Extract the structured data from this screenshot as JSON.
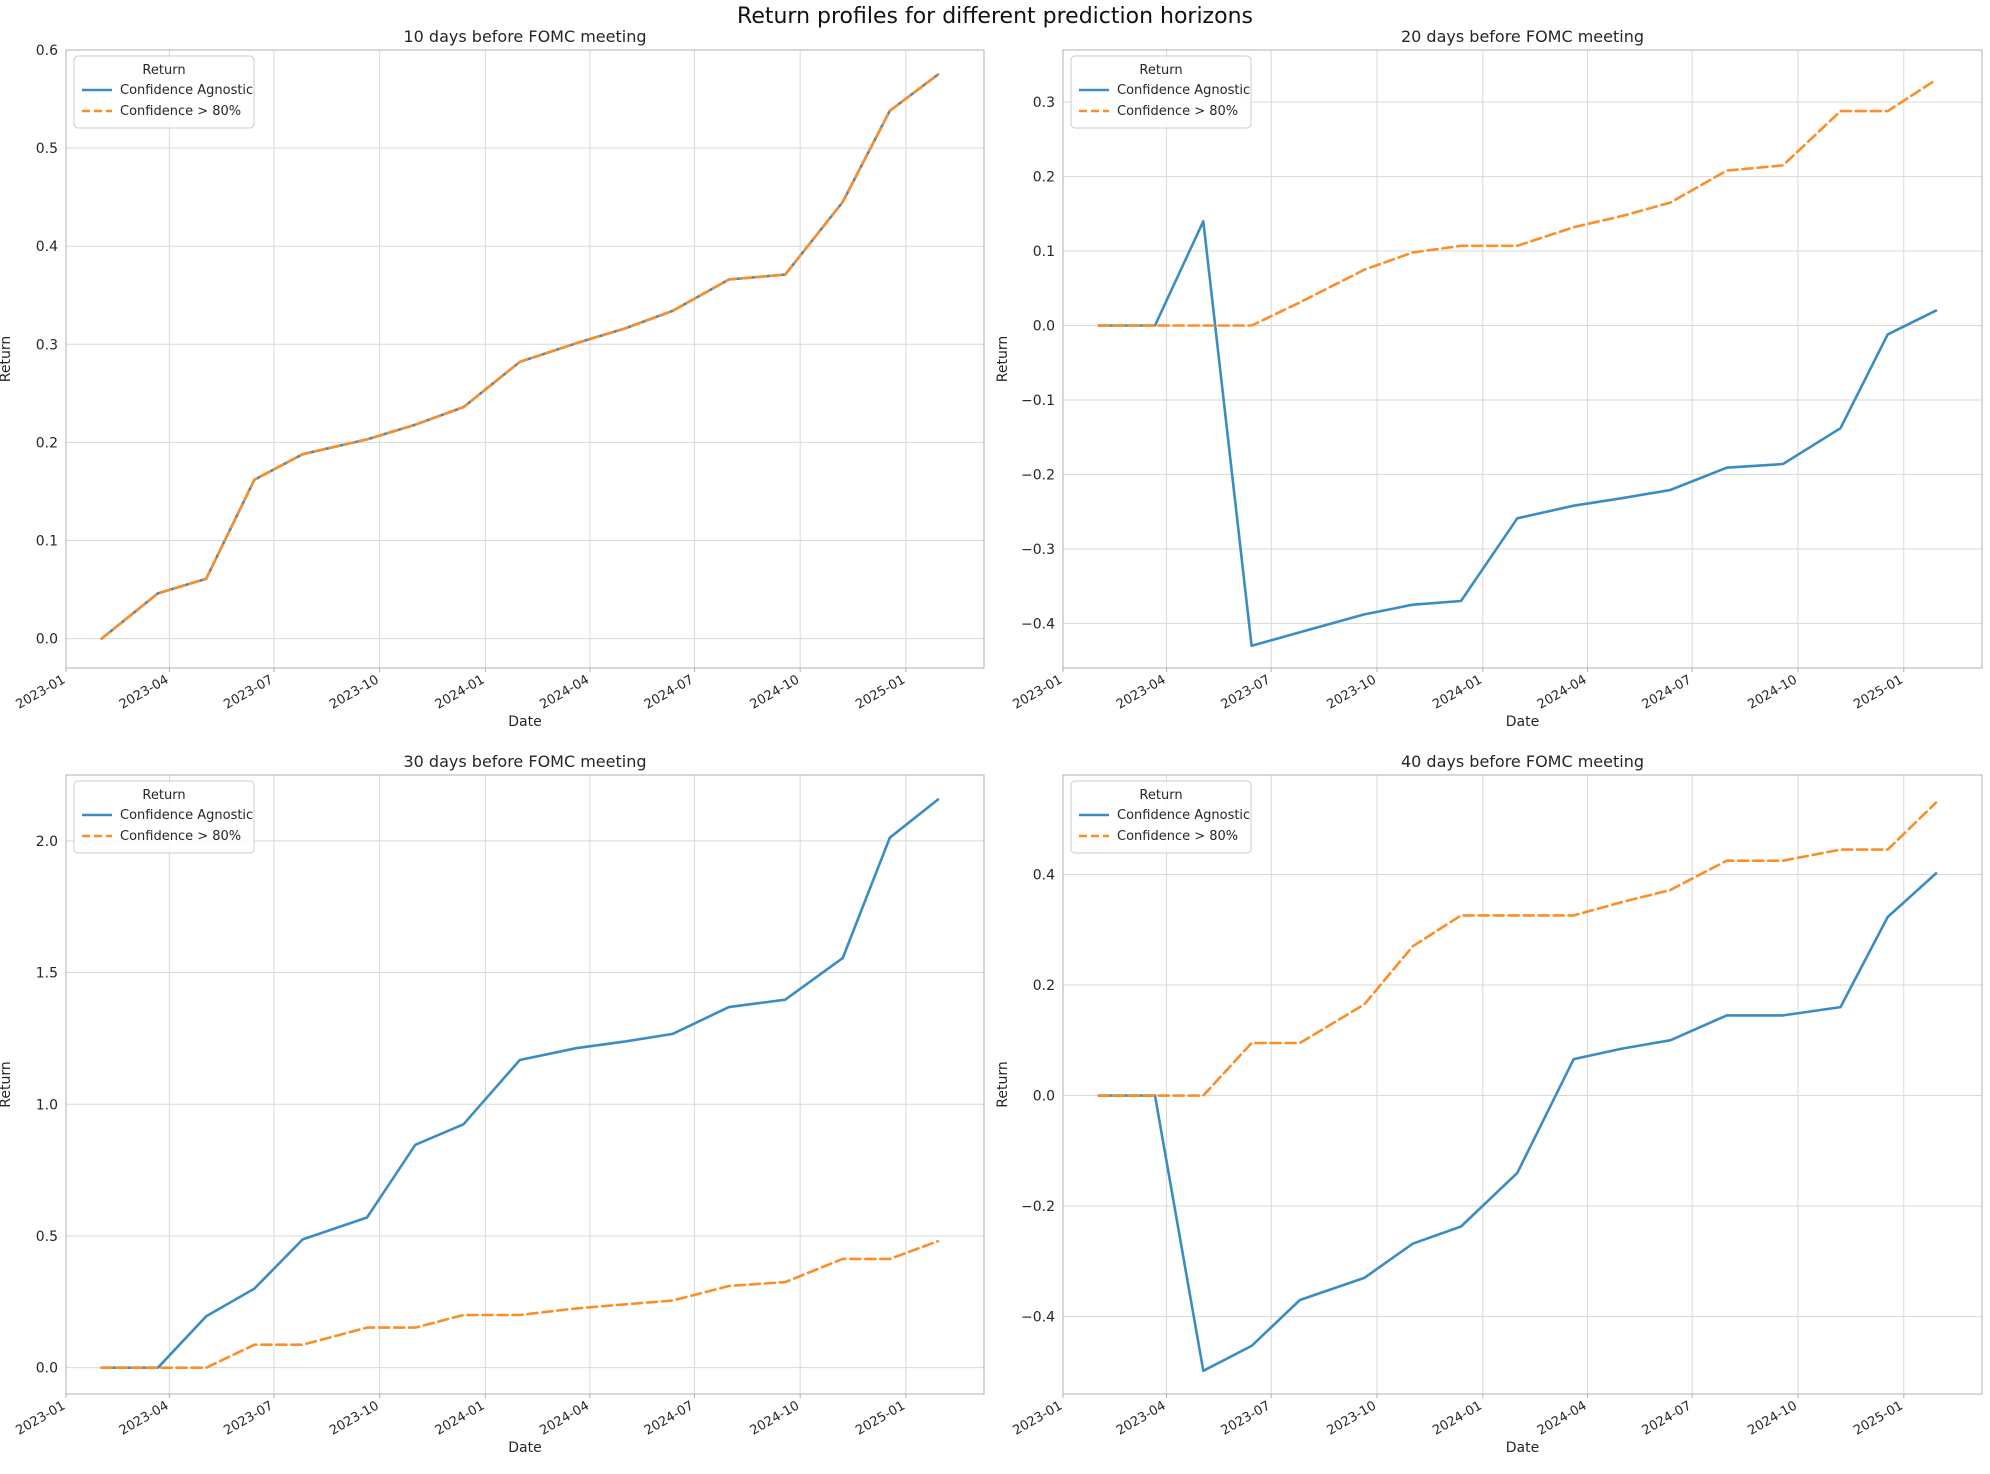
{
  "figure": {
    "title": "Return profiles for different prediction horizons"
  },
  "colors": {
    "agnostic": "#3a8dc2",
    "confident": "#fd8d27",
    "grid": "#d9d9d9",
    "axis": "#b0b0b0",
    "text": "#262626"
  },
  "chart_data": [
    {
      "type": "line",
      "title": "10 days before FOMC meeting",
      "xlabel": "Date",
      "ylabel": "Return",
      "legend_title": "Return",
      "legend_position": "top-left",
      "grid": true,
      "xlim": [
        "2023-01-01",
        "2025-03-10"
      ],
      "ylim": [
        -0.03,
        0.6
      ],
      "xticks": [
        "2023-01",
        "2023-04",
        "2023-07",
        "2023-10",
        "2024-01",
        "2024-04",
        "2024-07",
        "2024-10",
        "2025-01"
      ],
      "yticks": [
        "0.0",
        "0.1",
        "0.2",
        "0.3",
        "0.4",
        "0.5",
        "0.6"
      ],
      "x": [
        "2023-02-01",
        "2023-03-22",
        "2023-05-03",
        "2023-06-14",
        "2023-07-26",
        "2023-09-20",
        "2023-11-01",
        "2023-12-13",
        "2024-01-31",
        "2024-03-20",
        "2024-05-01",
        "2024-06-12",
        "2024-07-31",
        "2024-09-18",
        "2024-11-07",
        "2024-12-18",
        "2025-01-29"
      ],
      "series": [
        {
          "name": "Confidence Agnostic",
          "style": "solid",
          "values": [
            0.0,
            0.046,
            0.061,
            0.162,
            0.188,
            0.203,
            0.218,
            0.236,
            0.282,
            0.301,
            0.316,
            0.334,
            0.366,
            0.371,
            0.445,
            0.538,
            0.575
          ]
        },
        {
          "name": "Confidence > 80%",
          "style": "dashed",
          "values": [
            0.0,
            0.046,
            0.061,
            0.162,
            0.188,
            0.203,
            0.218,
            0.236,
            0.282,
            0.301,
            0.316,
            0.334,
            0.366,
            0.371,
            0.445,
            0.538,
            0.575
          ]
        }
      ]
    },
    {
      "type": "line",
      "title": "20 days before FOMC meeting",
      "xlabel": "Date",
      "ylabel": "Return",
      "legend_title": "Return",
      "legend_position": "top-left",
      "grid": true,
      "xlim": [
        "2023-01-01",
        "2025-03-10"
      ],
      "ylim": [
        -0.46,
        0.37
      ],
      "xticks": [
        "2023-01",
        "2023-04",
        "2023-07",
        "2023-10",
        "2024-01",
        "2024-04",
        "2024-07",
        "2024-10",
        "2025-01"
      ],
      "yticks": [
        "−0.4",
        "−0.3",
        "−0.2",
        "−0.1",
        "0.0",
        "0.1",
        "0.2",
        "0.3"
      ],
      "x": [
        "2023-02-01",
        "2023-03-22",
        "2023-05-03",
        "2023-06-14",
        "2023-07-26",
        "2023-09-20",
        "2023-11-01",
        "2023-12-13",
        "2024-01-31",
        "2024-03-20",
        "2024-05-01",
        "2024-06-12",
        "2024-07-31",
        "2024-09-18",
        "2024-11-07",
        "2024-12-18",
        "2025-01-29"
      ],
      "series": [
        {
          "name": "Confidence Agnostic",
          "style": "solid",
          "values": [
            0.0,
            0.0,
            0.14,
            -0.43,
            -0.412,
            -0.388,
            -0.375,
            -0.37,
            -0.259,
            -0.242,
            -0.232,
            -0.221,
            -0.191,
            -0.186,
            -0.138,
            -0.012,
            0.02
          ]
        },
        {
          "name": "Confidence > 80%",
          "style": "dashed",
          "values": [
            0.0,
            0.0,
            0.0,
            0.0,
            0.031,
            0.075,
            0.098,
            0.107,
            0.107,
            0.132,
            0.147,
            0.165,
            0.208,
            0.215,
            0.288,
            0.288,
            0.33
          ]
        }
      ]
    },
    {
      "type": "line",
      "title": "30 days before FOMC meeting",
      "xlabel": "Date",
      "ylabel": "Return",
      "legend_title": "Return",
      "legend_position": "top-left",
      "grid": true,
      "xlim": [
        "2023-01-01",
        "2025-03-10"
      ],
      "ylim": [
        -0.1,
        2.25
      ],
      "xticks": [
        "2023-01",
        "2023-04",
        "2023-07",
        "2023-10",
        "2024-01",
        "2024-04",
        "2024-07",
        "2024-10",
        "2025-01"
      ],
      "yticks": [
        "0.0",
        "0.5",
        "1.0",
        "1.5",
        "2.0"
      ],
      "x": [
        "2023-02-01",
        "2023-03-22",
        "2023-05-03",
        "2023-06-14",
        "2023-07-26",
        "2023-09-20",
        "2023-11-01",
        "2023-12-13",
        "2024-01-31",
        "2024-03-20",
        "2024-05-01",
        "2024-06-12",
        "2024-07-31",
        "2024-09-18",
        "2024-11-07",
        "2024-12-18",
        "2025-01-29"
      ],
      "series": [
        {
          "name": "Confidence Agnostic",
          "style": "solid",
          "values": [
            0.0,
            0.0,
            0.195,
            0.3,
            0.487,
            0.57,
            0.846,
            0.924,
            1.168,
            1.213,
            1.238,
            1.267,
            1.369,
            1.397,
            1.555,
            2.012,
            2.157
          ]
        },
        {
          "name": "Confidence > 80%",
          "style": "dashed",
          "values": [
            0.0,
            0.0,
            0.0,
            0.087,
            0.087,
            0.152,
            0.152,
            0.2,
            0.2,
            0.225,
            0.24,
            0.255,
            0.31,
            0.325,
            0.413,
            0.413,
            0.48
          ]
        }
      ]
    },
    {
      "type": "line",
      "title": "40 days before FOMC meeting",
      "xlabel": "Date",
      "ylabel": "Return",
      "legend_title": "Return",
      "legend_position": "top-left",
      "grid": true,
      "xlim": [
        "2023-01-01",
        "2025-03-10"
      ],
      "ylim": [
        -0.54,
        0.58
      ],
      "xticks": [
        "2023-01",
        "2023-04",
        "2023-07",
        "2023-10",
        "2024-01",
        "2024-04",
        "2024-07",
        "2024-10",
        "2025-01"
      ],
      "yticks": [
        "−0.4",
        "−0.2",
        "0.0",
        "0.2",
        "0.4"
      ],
      "x": [
        "2023-02-01",
        "2023-03-22",
        "2023-05-03",
        "2023-06-14",
        "2023-07-26",
        "2023-09-20",
        "2023-11-01",
        "2023-12-13",
        "2024-01-31",
        "2024-03-20",
        "2024-05-01",
        "2024-06-12",
        "2024-07-31",
        "2024-09-18",
        "2024-11-07",
        "2024-12-18",
        "2025-01-29"
      ],
      "series": [
        {
          "name": "Confidence Agnostic",
          "style": "solid",
          "values": [
            0.0,
            0.0,
            -0.498,
            -0.453,
            -0.37,
            -0.33,
            -0.268,
            -0.237,
            -0.14,
            0.066,
            0.085,
            0.1,
            0.145,
            0.145,
            0.16,
            0.323,
            0.402
          ]
        },
        {
          "name": "Confidence > 80%",
          "style": "dashed",
          "values": [
            0.0,
            0.0,
            0.0,
            0.095,
            0.095,
            0.165,
            0.27,
            0.326,
            0.326,
            0.326,
            0.35,
            0.372,
            0.425,
            0.425,
            0.445,
            0.445,
            0.53
          ]
        }
      ]
    }
  ]
}
